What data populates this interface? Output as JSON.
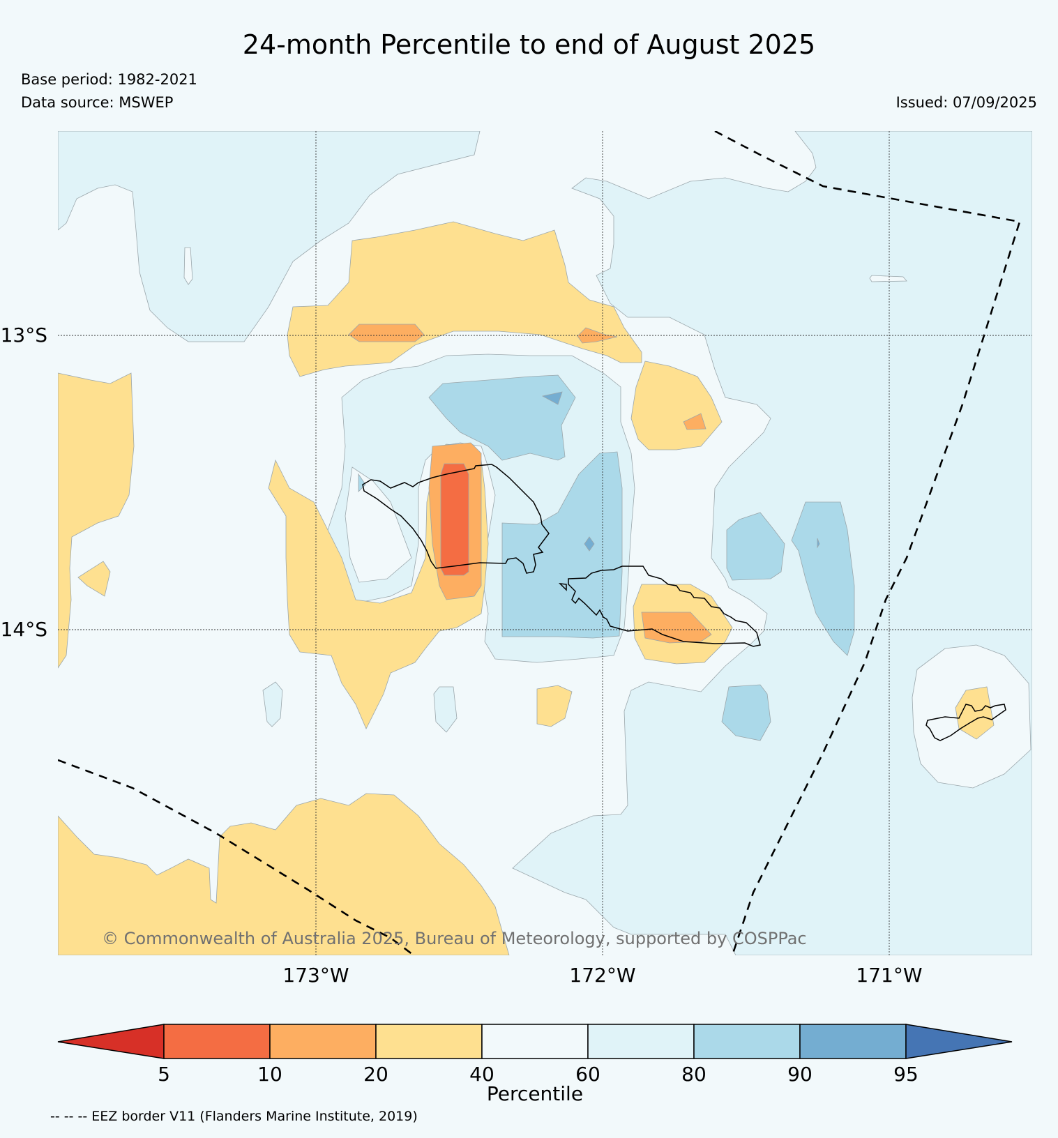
{
  "header": {
    "title": "24-month Percentile to end of August 2025",
    "base_period": "Base period: 1982-2021",
    "data_source": "Data source: MSWEP",
    "issued": "Issued: 07/09/2025"
  },
  "map": {
    "lat_labels": [
      "13°S",
      "14°S"
    ],
    "lon_labels": [
      "173°W",
      "172°W",
      "171°W"
    ],
    "copyright": "© Commonwealth of Australia 2025, Bureau of Meteorology, supported by COSPPac",
    "fill_colors": {
      "p5_10": "#f26c40",
      "p10_20": "#fbad61",
      "p20_40": "#fddf8e",
      "p40_60": "#f2f9fb",
      "p60_80": "#e0f3f8",
      "p80_90": "#abd9e9",
      "p90_95": "#74add1"
    }
  },
  "colorbar": {
    "label": "Percentile",
    "ticks": [
      "5",
      "10",
      "20",
      "40",
      "60",
      "80",
      "90",
      "95"
    ],
    "colors": [
      "#d73027",
      "#f46d43",
      "#fdae61",
      "#fee090",
      "#f2f9fb",
      "#e0f3f8",
      "#abd9e9",
      "#74add1",
      "#4575b4"
    ]
  },
  "legend": {
    "eez_note": "-- -- -- EEZ border V11 (Flanders Marine Institute, 2019)"
  }
}
